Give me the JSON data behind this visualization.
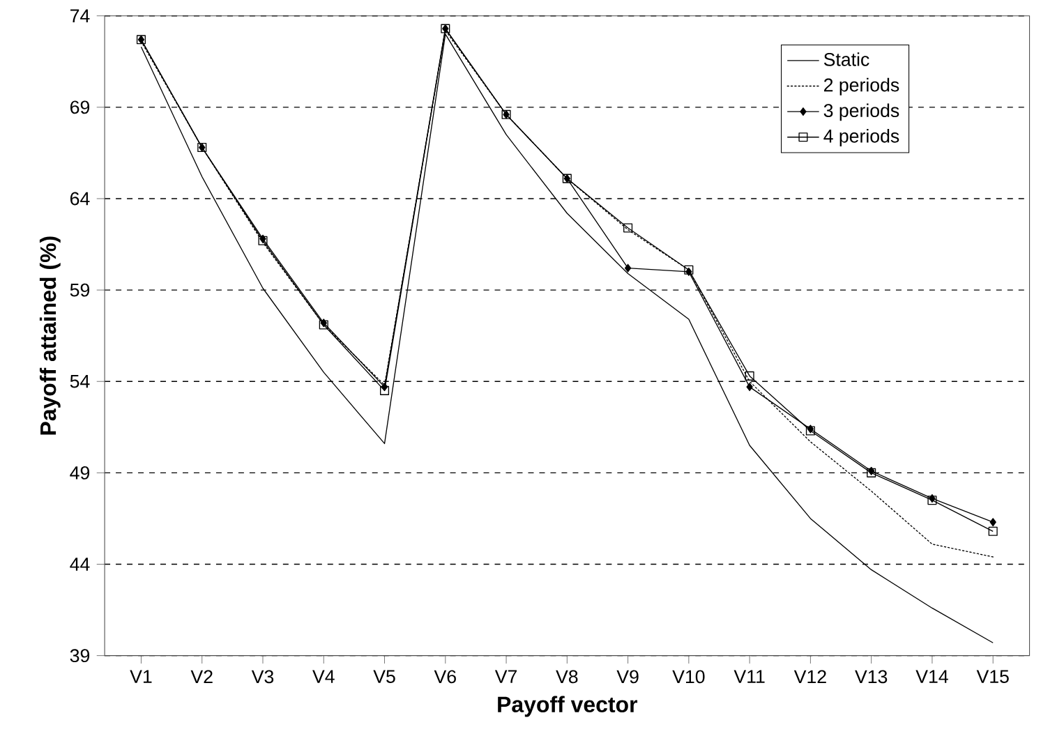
{
  "chart_data": {
    "type": "line",
    "xlabel": "Payoff vector",
    "ylabel": "Payoff attained (%)",
    "categories": [
      "V1",
      "V2",
      "V3",
      "V4",
      "V5",
      "V6",
      "V7",
      "V8",
      "V9",
      "V10",
      "V11",
      "V12",
      "V13",
      "V14",
      "V15"
    ],
    "series": [
      {
        "name": "Static",
        "color": "#000000",
        "marker": "none",
        "line_style": "solid",
        "values": [
          72.3,
          65.2,
          59.1,
          54.5,
          50.6,
          73.0,
          67.5,
          63.2,
          59.9,
          57.4,
          50.5,
          46.5,
          43.7,
          41.6,
          39.7
        ]
      },
      {
        "name": "2 periods",
        "color": "#000000",
        "marker": "none",
        "line_style": "dotted",
        "values": [
          72.6,
          66.8,
          61.6,
          57.1,
          53.8,
          73.2,
          68.6,
          65.1,
          62.3,
          60.1,
          54.0,
          50.7,
          48.0,
          45.1,
          44.4
        ]
      },
      {
        "name": "3 periods",
        "color": "#000000",
        "marker": "diamond",
        "line_style": "solid",
        "values": [
          72.7,
          66.8,
          61.8,
          57.2,
          53.7,
          73.3,
          68.6,
          65.1,
          60.2,
          60.0,
          53.7,
          51.4,
          49.1,
          47.6,
          46.3
        ]
      },
      {
        "name": "4 periods",
        "color": "#000000",
        "marker": "square",
        "line_style": "solid",
        "values": [
          72.7,
          66.8,
          61.7,
          57.1,
          53.5,
          73.3,
          68.6,
          65.1,
          62.4,
          60.1,
          54.3,
          51.3,
          49.0,
          47.5,
          45.8
        ]
      }
    ],
    "ylim": [
      39,
      74
    ],
    "yticks": [
      39,
      44,
      49,
      54,
      59,
      64,
      69,
      74
    ],
    "grid": "y",
    "legend": "top right"
  }
}
